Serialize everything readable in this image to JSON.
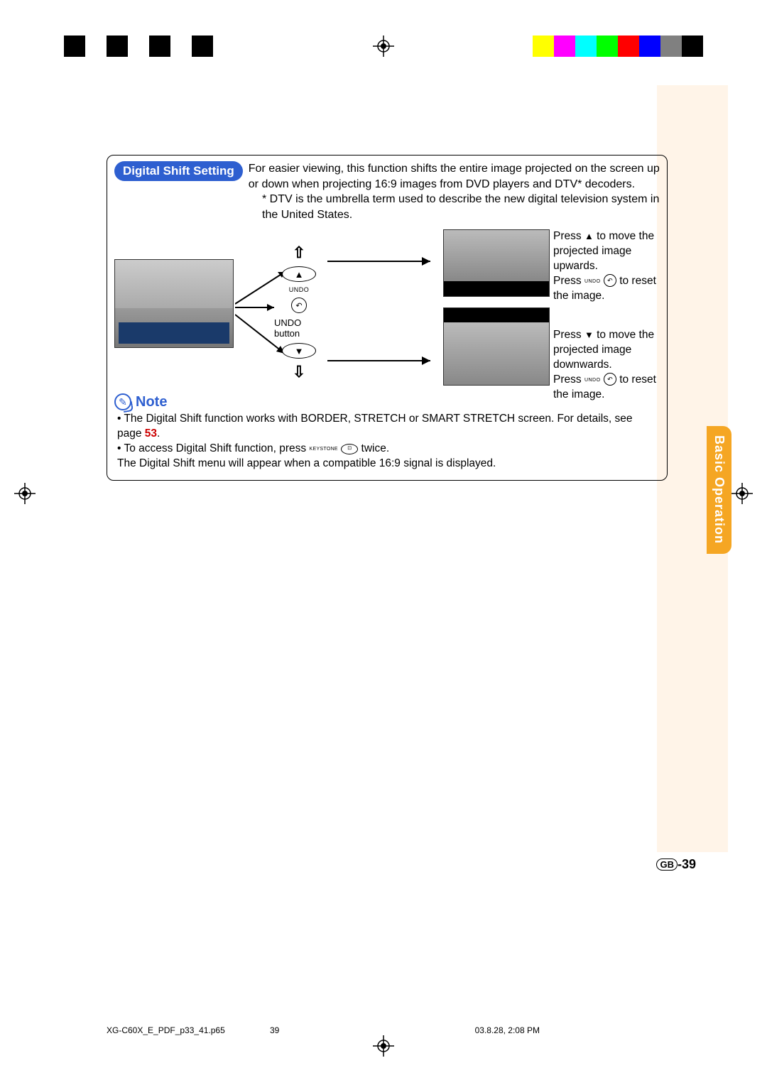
{
  "colorbars_left": [
    "#000000",
    "#ffffff",
    "#000000",
    "#ffffff",
    "#000000",
    "#ffffff",
    "#000000",
    "#ffffff"
  ],
  "colorbars_right": [
    "#ffff00",
    "#ff00ff",
    "#00ffff",
    "#00ff00",
    "#ff0000",
    "#0000ff",
    "#808080",
    "#000000"
  ],
  "side_tab": "Basic Operation",
  "side_tab_bg": "#f5a623",
  "page_bg_stripe": "#fff4e8",
  "pill": "Digital Shift Setting",
  "pill_bg": "#2e5fd0",
  "intro": "For easier viewing, this function shifts the entire image projected on the screen up or down when projecting 16:9 images from DVD players and DTV* decoders.",
  "dtv_note": "* DTV is the umbrella term used to describe the new digital television system in the United States.",
  "undo_label": "UNDO",
  "undo_button_label": "UNDO button",
  "keystone_label": "KEYSTONE",
  "right1_a": "Press ",
  "right1_b": " to move the projected image upwards.",
  "right1_c": "Press ",
  "right1_d": " to reset the image.",
  "right2_a": "Press ",
  "right2_b": " to move the projected image downwards.",
  "right2_c": "Press ",
  "right2_d": " to reset the image.",
  "note_label": "Note",
  "bullet1_a": "• The Digital Shift function works with BORDER, STRETCH or SMART STRETCH screen. For details, see page ",
  "bullet1_page": "53",
  "bullet1_b": ".",
  "bullet2_a": "• To access Digital Shift function, press ",
  "bullet2_b": " twice.",
  "bullet3": "  The Digital Shift menu will appear when a compatible 16:9 signal is displayed.",
  "page_number_prefix": "GB",
  "page_number": "-39",
  "footer_file": "XG-C60X_E_PDF_p33_41.p65",
  "footer_page": "39",
  "footer_date": "03.8.28, 2:08 PM"
}
